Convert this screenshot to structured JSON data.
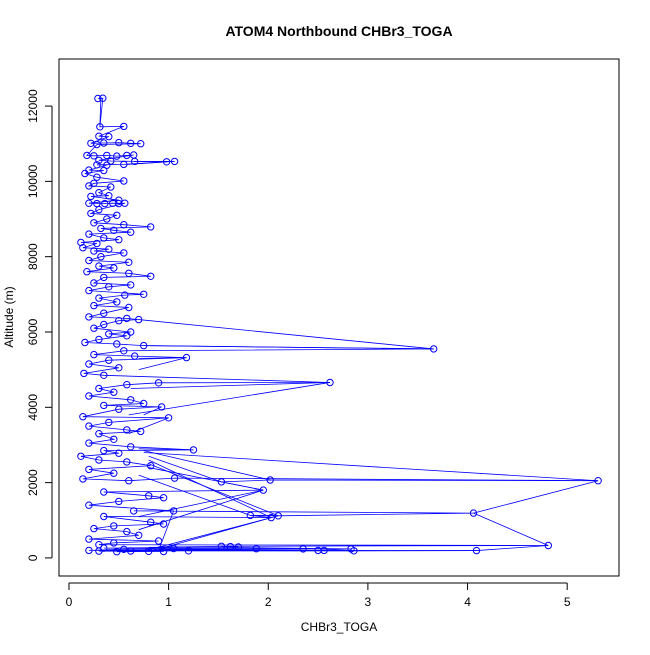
{
  "chart_data": {
    "type": "scatter",
    "title": "ATOM4 Northbound CHBr3_TOGA",
    "xlabel": "CHBr3_TOGA",
    "ylabel": "Altitude (m)",
    "xlim": [
      -0.1,
      5.52
    ],
    "ylim": [
      -480,
      13250
    ],
    "x_ticks": [
      0,
      1,
      2,
      3,
      4,
      5
    ],
    "y_ticks": [
      0,
      2000,
      4000,
      6000,
      8000,
      10000,
      12000
    ],
    "grid": false,
    "legend": "none",
    "series_color": "#0000ff",
    "series": [
      {
        "style": "points-and-lines",
        "points": [
          [
            0.29,
            12200
          ],
          [
            0.34,
            12210
          ],
          [
            0.31,
            11450
          ],
          [
            0.55,
            11460
          ],
          [
            0.3,
            11200
          ],
          [
            0.4,
            11190
          ],
          [
            0.22,
            11010
          ],
          [
            0.35,
            11020
          ],
          [
            0.5,
            11030
          ],
          [
            0.62,
            11010
          ],
          [
            0.72,
            11000
          ],
          [
            0.28,
            10980
          ],
          [
            0.18,
            10690
          ],
          [
            0.25,
            10680
          ],
          [
            0.38,
            10690
          ],
          [
            0.48,
            10670
          ],
          [
            0.58,
            10690
          ],
          [
            0.65,
            10700
          ],
          [
            0.3,
            10560
          ],
          [
            0.42,
            10540
          ],
          [
            0.66,
            10530
          ],
          [
            0.98,
            10520
          ],
          [
            1.06,
            10530
          ],
          [
            0.55,
            10450
          ],
          [
            0.28,
            10440
          ],
          [
            0.38,
            10430
          ],
          [
            0.2,
            10300
          ],
          [
            0.35,
            10290
          ],
          [
            0.16,
            10210
          ],
          [
            0.28,
            10110
          ],
          [
            0.55,
            10010
          ],
          [
            0.25,
            9950
          ],
          [
            0.2,
            9880
          ],
          [
            0.42,
            9850
          ],
          [
            0.3,
            9700
          ],
          [
            0.4,
            9620
          ],
          [
            0.22,
            9600
          ],
          [
            0.5,
            9500
          ],
          [
            0.2,
            9420
          ],
          [
            0.28,
            9410
          ],
          [
            0.36,
            9410
          ],
          [
            0.44,
            9420
          ],
          [
            0.5,
            9410
          ],
          [
            0.56,
            9420
          ],
          [
            0.3,
            9250
          ],
          [
            0.22,
            9150
          ],
          [
            0.48,
            9100
          ],
          [
            0.38,
            9000
          ],
          [
            0.25,
            8900
          ],
          [
            0.55,
            8850
          ],
          [
            0.82,
            8790
          ],
          [
            0.32,
            8750
          ],
          [
            0.45,
            8700
          ],
          [
            0.62,
            8650
          ],
          [
            0.2,
            8600
          ],
          [
            0.35,
            8500
          ],
          [
            0.5,
            8450
          ],
          [
            0.12,
            8380
          ],
          [
            0.28,
            8350
          ],
          [
            0.14,
            8240
          ],
          [
            0.4,
            8200
          ],
          [
            0.25,
            8150
          ],
          [
            0.55,
            8100
          ],
          [
            0.32,
            8000
          ],
          [
            0.2,
            7900
          ],
          [
            0.6,
            7850
          ],
          [
            0.3,
            7750
          ],
          [
            0.45,
            7700
          ],
          [
            0.18,
            7600
          ],
          [
            0.6,
            7560
          ],
          [
            0.82,
            7480
          ],
          [
            0.35,
            7450
          ],
          [
            0.25,
            7300
          ],
          [
            0.62,
            7250
          ],
          [
            0.4,
            7200
          ],
          [
            0.2,
            7100
          ],
          [
            0.75,
            7000
          ],
          [
            0.56,
            6980
          ],
          [
            0.3,
            6900
          ],
          [
            0.48,
            6800
          ],
          [
            0.25,
            6700
          ],
          [
            0.6,
            6650
          ],
          [
            0.35,
            6500
          ],
          [
            0.2,
            6400
          ],
          [
            0.58,
            6360
          ],
          [
            0.7,
            6330
          ],
          [
            0.5,
            6300
          ],
          [
            0.35,
            6200
          ],
          [
            0.25,
            6100
          ],
          [
            0.62,
            6000
          ],
          [
            0.4,
            5950
          ],
          [
            0.58,
            5900
          ],
          [
            0.3,
            5800
          ],
          [
            0.16,
            5720
          ],
          [
            0.48,
            5680
          ],
          [
            0.75,
            5640
          ],
          [
            3.66,
            5550
          ],
          [
            0.55,
            5500
          ],
          [
            0.25,
            5400
          ],
          [
            0.66,
            5360
          ],
          [
            1.18,
            5320
          ],
          [
            0.4,
            5250
          ],
          [
            0.2,
            5150
          ],
          [
            0.5,
            5050
          ],
          [
            0.15,
            4900
          ],
          [
            0.35,
            4850
          ],
          [
            2.62,
            4660
          ],
          [
            0.9,
            4650
          ],
          [
            0.58,
            4600
          ],
          [
            0.3,
            4500
          ],
          [
            0.45,
            4400
          ],
          [
            0.2,
            4300
          ],
          [
            0.62,
            4200
          ],
          [
            0.75,
            4100
          ],
          [
            0.35,
            4050
          ],
          [
            0.93,
            4010
          ],
          [
            0.5,
            3950
          ],
          [
            0.14,
            3750
          ],
          [
            1.0,
            3720
          ],
          [
            0.4,
            3600
          ],
          [
            0.2,
            3500
          ],
          [
            0.58,
            3400
          ],
          [
            0.72,
            3360
          ],
          [
            0.3,
            3300
          ],
          [
            0.45,
            3150
          ],
          [
            0.2,
            3050
          ],
          [
            0.62,
            2950
          ],
          [
            1.25,
            2870
          ],
          [
            0.35,
            2850
          ],
          [
            0.5,
            2780
          ],
          [
            0.12,
            2700
          ],
          [
            0.3,
            2600
          ],
          [
            0.58,
            2550
          ],
          [
            0.82,
            2450
          ],
          [
            0.2,
            2350
          ],
          [
            0.45,
            2250
          ],
          [
            0.14,
            2100
          ],
          [
            0.6,
            2050
          ],
          [
            1.06,
            2120
          ],
          [
            5.31,
            2050
          ],
          [
            2.02,
            2070
          ],
          [
            1.53,
            2020
          ],
          [
            1.95,
            1800
          ],
          [
            0.35,
            1750
          ],
          [
            0.8,
            1650
          ],
          [
            0.95,
            1600
          ],
          [
            0.5,
            1500
          ],
          [
            0.2,
            1400
          ],
          [
            1.05,
            1250
          ],
          [
            0.65,
            1250
          ],
          [
            4.06,
            1190
          ],
          [
            2.1,
            1120
          ],
          [
            1.82,
            1130
          ],
          [
            2.03,
            1070
          ],
          [
            0.35,
            1100
          ],
          [
            0.82,
            950
          ],
          [
            0.95,
            900
          ],
          [
            0.45,
            850
          ],
          [
            0.25,
            780
          ],
          [
            0.58,
            700
          ],
          [
            0.7,
            600
          ],
          [
            0.2,
            500
          ],
          [
            0.9,
            450
          ],
          [
            0.45,
            400
          ],
          [
            0.3,
            350
          ],
          [
            4.81,
            330
          ],
          [
            1.53,
            310
          ],
          [
            1.62,
            300
          ],
          [
            1.7,
            290
          ],
          [
            0.35,
            260
          ],
          [
            1.05,
            250
          ],
          [
            1.88,
            245
          ],
          [
            2.35,
            240
          ],
          [
            2.83,
            240
          ],
          [
            0.55,
            230
          ],
          [
            0.2,
            200
          ],
          [
            2.5,
            200
          ],
          [
            2.56,
            200
          ],
          [
            4.09,
            195
          ],
          [
            2.86,
            190
          ],
          [
            1.2,
            190
          ],
          [
            0.62,
            185
          ],
          [
            0.3,
            180
          ],
          [
            0.8,
            175
          ],
          [
            0.95,
            170
          ],
          [
            0.48,
            165
          ]
        ],
        "connections": [
          [
            0.31,
            11450,
            0.32,
            12200
          ],
          [
            0.66,
            10530,
            0.98,
            10520
          ],
          [
            0.66,
            10530,
            1.06,
            10530
          ],
          [
            0.58,
            10450,
            0.98,
            10520
          ],
          [
            0.7,
            6330,
            3.66,
            5550
          ],
          [
            0.75,
            5640,
            3.66,
            5550
          ],
          [
            0.7,
            5300,
            1.18,
            5320
          ],
          [
            0.7,
            5000,
            1.18,
            5320
          ],
          [
            0.62,
            4500,
            2.62,
            4660
          ],
          [
            0.6,
            3800,
            2.62,
            4660
          ],
          [
            0.75,
            3800,
            0.93,
            4010
          ],
          [
            0.6,
            3300,
            1.0,
            3720
          ],
          [
            0.75,
            2800,
            5.31,
            2050
          ],
          [
            0.7,
            2900,
            1.25,
            2870
          ],
          [
            0.75,
            2850,
            2.02,
            2070
          ],
          [
            0.8,
            2700,
            1.53,
            2020
          ],
          [
            0.8,
            2600,
            2.03,
            1070
          ],
          [
            0.8,
            2500,
            2.1,
            1120
          ],
          [
            0.8,
            2400,
            1.95,
            1800
          ],
          [
            0.7,
            2200,
            1.82,
            1130
          ],
          [
            0.7,
            1100,
            1.95,
            1800
          ],
          [
            0.7,
            750,
            1.95,
            1800
          ],
          [
            5.31,
            2050,
            4.06,
            1190
          ],
          [
            4.06,
            1190,
            4.81,
            330
          ],
          [
            4.81,
            330,
            4.09,
            195
          ],
          [
            4.09,
            195,
            2.86,
            190
          ],
          [
            2.86,
            190,
            1.2,
            190
          ],
          [
            2.83,
            240,
            2.5,
            200
          ],
          [
            2.5,
            200,
            2.56,
            200
          ],
          [
            2.56,
            200,
            0.9,
            220
          ],
          [
            2.35,
            240,
            1.88,
            245
          ],
          [
            1.88,
            245,
            0.9,
            210
          ],
          [
            1.7,
            290,
            1.53,
            310
          ],
          [
            1.53,
            310,
            0.8,
            280
          ],
          [
            2.83,
            240,
            0.9,
            300
          ],
          [
            2.1,
            1120,
            1.82,
            1130
          ],
          [
            2.03,
            1070,
            0.75,
            180
          ],
          [
            2.1,
            1120,
            0.85,
            200
          ],
          [
            1.05,
            1250,
            0.9,
            200
          ]
        ]
      }
    ]
  }
}
